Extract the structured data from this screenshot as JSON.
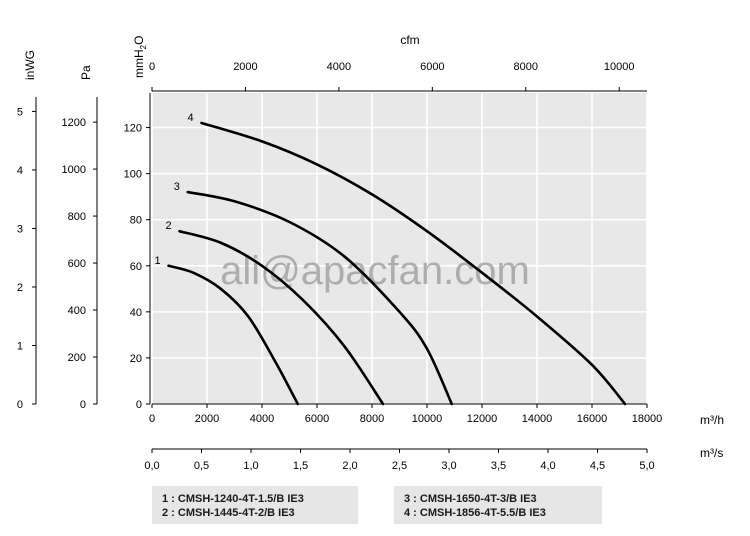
{
  "watermark": "ali@apacfan.com",
  "chart_data": {
    "type": "line",
    "x_unit": "m³/h",
    "x_ticks": [
      0,
      2000,
      4000,
      6000,
      8000,
      10000,
      12000,
      14000,
      16000,
      18000
    ],
    "xlim": [
      0,
      18000
    ],
    "x2_unit": "m³/s",
    "x2_ticks": [
      "0,0",
      "0,5",
      "1,0",
      "1,5",
      "2,0",
      "2,5",
      "3,0",
      "3,5",
      "4,0",
      "4,5",
      "5,0"
    ],
    "x2_values": [
      0,
      0.5,
      1.0,
      1.5,
      2.0,
      2.5,
      3.0,
      3.5,
      4.0,
      4.5,
      5.0
    ],
    "top_axis_unit": "cfm",
    "top_ticks": [
      0,
      2000,
      4000,
      6000,
      8000,
      10000
    ],
    "y_unit": "mmH2O",
    "y_ticks": [
      0,
      20,
      40,
      60,
      80,
      100,
      120
    ],
    "ylim": [
      0,
      135
    ],
    "pa_unit": "Pa",
    "pa_ticks": [
      0,
      200,
      400,
      600,
      800,
      1000,
      1200
    ],
    "inwg_unit": "inWG",
    "inwg_ticks": [
      0,
      1,
      2,
      3,
      4,
      5
    ],
    "series": [
      {
        "label": "1",
        "color": "#000000",
        "points": [
          [
            600,
            60
          ],
          [
            1500,
            57
          ],
          [
            2500,
            50
          ],
          [
            3500,
            38
          ],
          [
            4500,
            18
          ],
          [
            5300,
            0
          ]
        ]
      },
      {
        "label": "2",
        "color": "#000000",
        "points": [
          [
            1000,
            75
          ],
          [
            2500,
            70
          ],
          [
            4000,
            60
          ],
          [
            5500,
            45
          ],
          [
            7000,
            25
          ],
          [
            8400,
            0
          ]
        ]
      },
      {
        "label": "3",
        "color": "#000000",
        "points": [
          [
            1300,
            92
          ],
          [
            3000,
            88
          ],
          [
            5000,
            79
          ],
          [
            7000,
            64
          ],
          [
            9000,
            40
          ],
          [
            10000,
            24
          ],
          [
            10900,
            0
          ]
        ]
      },
      {
        "label": "4",
        "color": "#000000",
        "points": [
          [
            1800,
            122
          ],
          [
            4000,
            114
          ],
          [
            6000,
            104
          ],
          [
            8000,
            91
          ],
          [
            10000,
            75
          ],
          [
            12000,
            57
          ],
          [
            14000,
            38
          ],
          [
            16000,
            17
          ],
          [
            17200,
            0
          ]
        ]
      }
    ],
    "legend": {
      "left": [
        "1 : CMSH-1240-4T-1.5/B IE3",
        "2 : CMSH-1445-4T-2/B IE3"
      ],
      "right": [
        "3 : CMSH-1650-4T-3/B IE3",
        "4 : CMSH-1856-4T-5.5/B IE3"
      ]
    },
    "grid": true
  }
}
